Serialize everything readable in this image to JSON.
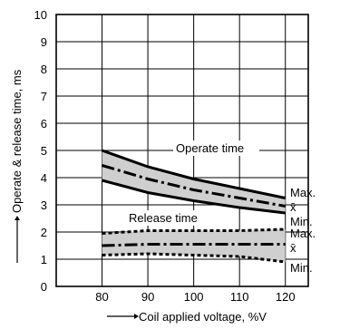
{
  "chart_data": {
    "type": "line",
    "title": "",
    "xlabel": "Coil applied voltage, %V",
    "ylabel": "Operate & release time, ms",
    "xlim": [
      70,
      125
    ],
    "ylim": [
      0,
      10
    ],
    "x_ticks": [
      80,
      90,
      100,
      110,
      120
    ],
    "y_ticks": [
      0,
      1,
      2,
      3,
      4,
      5,
      6,
      7,
      8,
      9,
      10
    ],
    "grid": true,
    "annotations": {
      "operate_label": "Operate time",
      "release_label": "Release time"
    },
    "bands": [
      {
        "name": "Operate time",
        "x": [
          80,
          90,
          100,
          110,
          120
        ],
        "max": [
          5.0,
          4.4,
          3.95,
          3.6,
          3.25
        ],
        "mean": [
          4.45,
          3.95,
          3.55,
          3.25,
          2.95
        ],
        "min": [
          3.9,
          3.45,
          3.15,
          2.9,
          2.7
        ],
        "max_label": "Max.",
        "mean_label": "x̄",
        "min_label": ""
      },
      {
        "name": "Release time",
        "x": [
          80,
          90,
          100,
          110,
          120
        ],
        "max": [
          1.95,
          2.05,
          2.05,
          2.05,
          2.1
        ],
        "mean": [
          1.5,
          1.55,
          1.55,
          1.55,
          1.55
        ],
        "min": [
          1.15,
          1.2,
          1.15,
          1.1,
          0.9
        ],
        "max_label": "Max.",
        "mean_label": "x̄",
        "min_label": "Min."
      }
    ],
    "operate_min_label": "Min."
  }
}
